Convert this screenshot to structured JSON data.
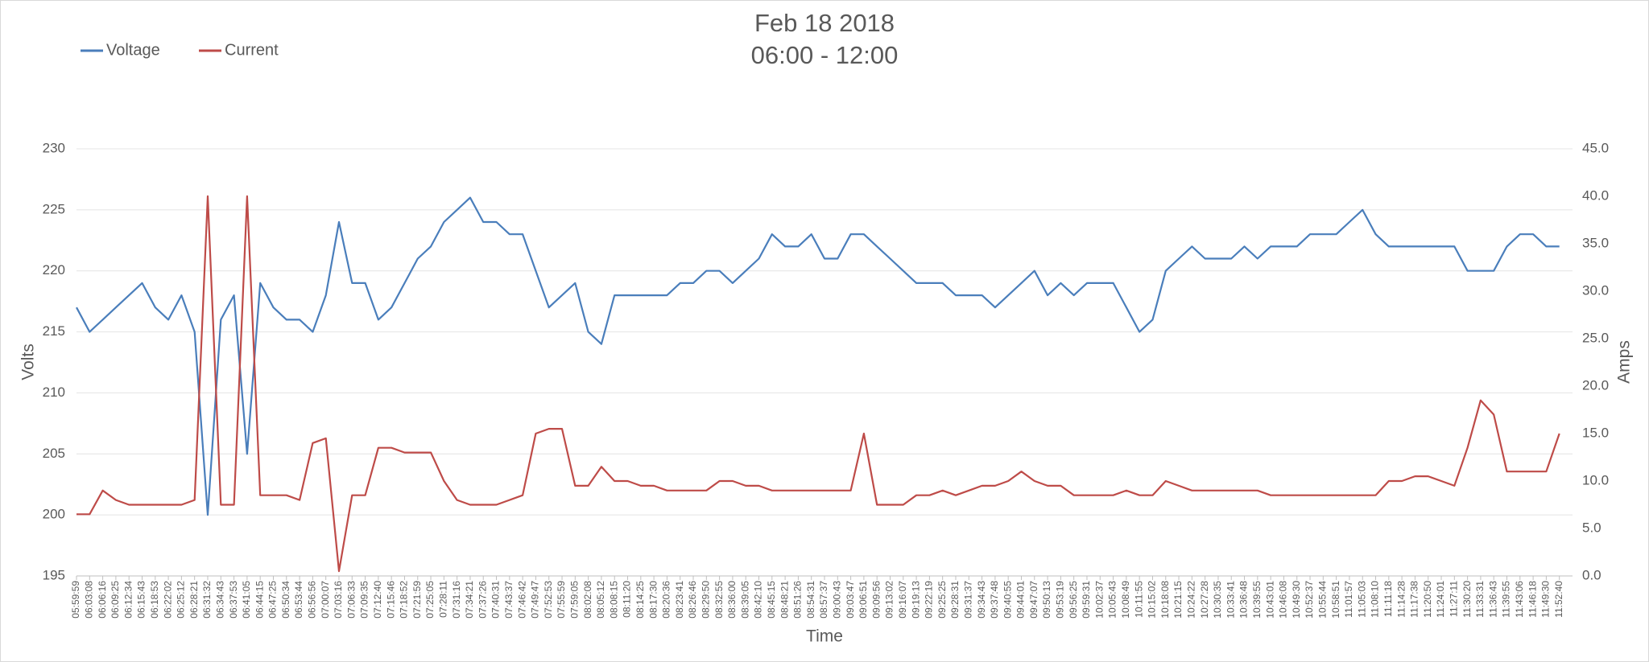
{
  "chart_data": {
    "type": "line",
    "title": "Feb 18 2018",
    "subtitle": "06:00 - 12:00",
    "x_label": "Time",
    "y_label": "Volts",
    "y2_label": "Amps",
    "legend": "top-left",
    "grid": true,
    "ylim": [
      195,
      230
    ],
    "yticks": [
      195,
      200,
      205,
      210,
      215,
      220,
      225,
      230
    ],
    "y2lim": [
      0,
      45
    ],
    "y2ticks": [
      {
        "value": 0,
        "label": "0.0"
      },
      {
        "value": 5,
        "label": "5.0"
      },
      {
        "value": 10,
        "label": "10.0"
      },
      {
        "value": 15,
        "label": "15.0"
      },
      {
        "value": 20,
        "label": "20.0"
      },
      {
        "value": 25,
        "label": "25.0"
      },
      {
        "value": 30,
        "label": "30.0"
      },
      {
        "value": 35,
        "label": "35.0"
      },
      {
        "value": 40,
        "label": "40.0"
      },
      {
        "value": 45,
        "label": "45.0"
      }
    ],
    "categories": [
      "05:59:59",
      "06:03:08",
      "06:06:16",
      "06:09:25",
      "06:12:34",
      "06:15:43",
      "06:18:53",
      "06:22:02",
      "06:25:12",
      "06:28:21",
      "06:31:32",
      "06:34:43",
      "06:37:53",
      "06:41:05",
      "06:44:15",
      "06:47:25",
      "06:50:34",
      "06:53:44",
      "06:56:56",
      "07:00:07",
      "07:03:16",
      "07:06:33",
      "07:09:35",
      "07:12:40",
      "07:15:46",
      "07:18:52",
      "07:21:59",
      "07:25:05",
      "07:28:11",
      "07:31:16",
      "07:34:21",
      "07:37:26",
      "07:40:31",
      "07:43:37",
      "07:46:42",
      "07:49:47",
      "07:52:53",
      "07:55:59",
      "07:59:05",
      "08:02:08",
      "08:05:12",
      "08:08:15",
      "08:11:20",
      "08:14:25",
      "08:17:30",
      "08:20:36",
      "08:23:41",
      "08:26:46",
      "08:29:50",
      "08:32:55",
      "08:36:00",
      "08:39:05",
      "08:42:10",
      "08:45:15",
      "08:48:21",
      "08:51:26",
      "08:54:31",
      "08:57:37",
      "09:00:43",
      "09:03:47",
      "09:06:51",
      "09:09:56",
      "09:13:02",
      "09:16:07",
      "09:19:13",
      "09:22:19",
      "09:25:25",
      "09:28:31",
      "09:31:37",
      "09:34:43",
      "09:37:48",
      "09:40:55",
      "09:44:01",
      "09:47:07",
      "09:50:13",
      "09:53:19",
      "09:56:25",
      "09:59:31",
      "10:02:37",
      "10:05:43",
      "10:08:49",
      "10:11:55",
      "10:15:02",
      "10:18:08",
      "10:21:15",
      "10:24:22",
      "10:27:28",
      "10:30:35",
      "10:33:41",
      "10:36:48",
      "10:39:55",
      "10:43:01",
      "10:46:08",
      "10:49:30",
      "10:52:37",
      "10:55:44",
      "10:58:51",
      "11:01:57",
      "11:05:03",
      "11:08:10",
      "11:11:18",
      "11:14:28",
      "11:17:38",
      "11:20:50",
      "11:24:01",
      "11:27:11",
      "11:30:20",
      "11:33:31",
      "11:36:43",
      "11:39:55",
      "11:43:06",
      "11:46:18",
      "11:49:30",
      "11:52:40"
    ],
    "series": [
      {
        "name": "Voltage",
        "color": "#4a7ebb",
        "values": [
          217,
          215,
          216,
          217,
          218,
          219,
          217,
          216,
          218,
          215,
          200,
          216,
          218,
          205,
          219,
          217,
          216,
          216,
          215,
          218,
          224,
          219,
          219,
          216,
          217,
          219,
          221,
          222,
          224,
          225,
          226,
          224,
          224,
          223,
          223,
          220,
          217,
          218,
          219,
          215,
          214,
          218,
          218,
          218,
          218,
          218,
          219,
          219,
          220,
          220,
          219,
          220,
          221,
          223,
          222,
          222,
          223,
          221,
          221,
          223,
          223,
          222,
          221,
          220,
          219,
          219,
          219,
          218,
          218,
          218,
          217,
          218,
          219,
          220,
          218,
          219,
          218,
          219,
          219,
          219,
          217,
          215,
          216,
          220,
          221,
          222,
          221,
          221,
          221,
          222,
          221,
          222,
          222,
          222,
          223,
          223,
          223,
          224,
          225,
          223,
          222,
          222,
          222,
          222,
          222,
          222,
          220,
          220,
          220,
          222,
          223,
          223,
          222,
          222
        ]
      },
      {
        "name": "Current",
        "color": "#be4b48",
        "axis": "y2",
        "values": [
          6.5,
          6.5,
          9,
          8,
          7.5,
          7.5,
          7.5,
          7.5,
          7.5,
          8,
          40,
          7.5,
          7.5,
          40,
          8.5,
          8.5,
          8.5,
          8,
          14,
          14.5,
          0.5,
          8.5,
          8.5,
          13.5,
          13.5,
          13,
          13,
          13,
          10,
          8,
          7.5,
          7.5,
          7.5,
          8,
          8.5,
          15,
          15.5,
          15.5,
          9.5,
          9.5,
          11.5,
          10,
          10,
          9.5,
          9.5,
          9,
          9,
          9,
          9,
          10,
          10,
          9.5,
          9.5,
          9,
          9,
          9,
          9,
          9,
          9,
          9,
          15,
          7.5,
          7.5,
          7.5,
          8.5,
          8.5,
          9,
          8.5,
          9,
          9.5,
          9.5,
          10,
          11,
          10,
          9.5,
          9.5,
          8.5,
          8.5,
          8.5,
          8.5,
          9,
          8.5,
          8.5,
          10,
          9.5,
          9,
          9,
          9,
          9,
          9,
          9,
          8.5,
          8.5,
          8.5,
          8.5,
          8.5,
          8.5,
          8.5,
          8.5,
          8.5,
          10,
          10,
          10.5,
          10.5,
          10,
          9.5,
          13.5,
          18.5,
          17,
          11,
          11,
          11,
          11,
          15
        ]
      }
    ]
  }
}
